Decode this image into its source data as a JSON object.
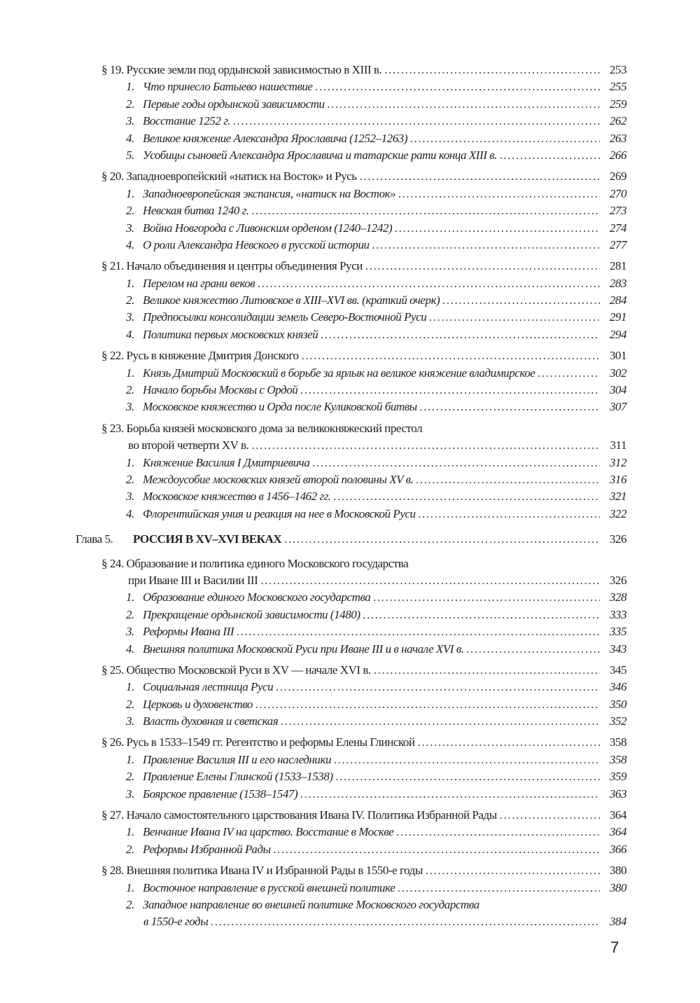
{
  "entries": [
    {
      "type": "section",
      "label": "§ 19. Русские земли под ордынской зависимостью в XIII в.",
      "page": "253"
    },
    {
      "type": "item",
      "num": "1.",
      "label": "Что принесло Батыево нашествие",
      "page": "255"
    },
    {
      "type": "item",
      "num": "2.",
      "label": "Первые годы ордынской зависимости",
      "page": "259"
    },
    {
      "type": "item",
      "num": "3.",
      "label": "Восстание 1252 г.",
      "page": "262"
    },
    {
      "type": "item",
      "num": "4.",
      "label": "Великое княжение Александра Ярославича (1252–1263)",
      "page": "263"
    },
    {
      "type": "item",
      "num": "5.",
      "label": "Усобицы сыновей Александра Ярославича и татарские рати конца XIII в.",
      "page": "266"
    },
    {
      "type": "section",
      "label": "§ 20. Западноевропейский «натиск на Восток» и Русь",
      "page": "269"
    },
    {
      "type": "item",
      "num": "1.",
      "label": "Западноевропейская экспансия, «натиск на Восток»",
      "page": "270"
    },
    {
      "type": "item",
      "num": "2.",
      "label": "Невская битва 1240 г.",
      "page": "273"
    },
    {
      "type": "item",
      "num": "3.",
      "label": "Война Новгорода с Ливонским орденом (1240–1242)",
      "page": "274"
    },
    {
      "type": "item",
      "num": "4.",
      "label": "О роли Александра Невского в русской истории",
      "page": "277"
    },
    {
      "type": "section",
      "label": "§ 21. Начало объединения и центры объединения Руси",
      "page": "281"
    },
    {
      "type": "item",
      "num": "1.",
      "label": "Перелом на грани веков",
      "page": "283"
    },
    {
      "type": "item",
      "num": "2.",
      "label": "Великое княжество Литовское в XIII–XVI вв. (краткий очерк)",
      "page": "284"
    },
    {
      "type": "item",
      "num": "3.",
      "label": "Предпосылки консолидации земель Северо-Восточной Руси",
      "page": "291"
    },
    {
      "type": "item",
      "num": "4.",
      "label": "Политика первых московских князей",
      "page": "294"
    },
    {
      "type": "section",
      "label": "§ 22. Русь в княжение Дмитрия Донского",
      "page": "301"
    },
    {
      "type": "item",
      "num": "1.",
      "label": "Князь Дмитрий Московский в борьбе за ярлык на великое княжение владимирское",
      "page": "302"
    },
    {
      "type": "item",
      "num": "2.",
      "label": "Начало борьбы Москвы с Ордой",
      "page": "304"
    },
    {
      "type": "item",
      "num": "3.",
      "label": "Московское княжество и Орда после Куликовской битвы",
      "page": "307"
    },
    {
      "type": "section",
      "label": "§ 23. Борьба князей московского дома за великокняжеский престол",
      "page": ""
    },
    {
      "type": "cont",
      "label": "во второй четверти XV в.",
      "page": "311"
    },
    {
      "type": "item",
      "num": "1.",
      "label": "Княжение Василия I Дмитриевича",
      "page": "312"
    },
    {
      "type": "item",
      "num": "2.",
      "label": "Междоусобие московских князей второй половины XV в.",
      "page": "316"
    },
    {
      "type": "item",
      "num": "3.",
      "label": "Московское княжество в 1456–1462 гг.",
      "page": "321"
    },
    {
      "type": "item",
      "num": "4.",
      "label": "Флорентийская уния и реакция на нее в Московской Руси",
      "page": "322"
    },
    {
      "type": "chapter",
      "num": "Глава 5.",
      "label": "РОССИЯ В XV–XVI ВЕКАХ",
      "page": "326"
    },
    {
      "type": "section",
      "label": "§ 24. Образование и политика единого Московского государства",
      "page": ""
    },
    {
      "type": "cont",
      "label": "при Иване III и Василии III",
      "page": "326"
    },
    {
      "type": "item",
      "num": "1.",
      "label": "Образование единого Московского государства",
      "page": "328"
    },
    {
      "type": "item",
      "num": "2.",
      "label": "Прекращение ордынской зависимости (1480)",
      "page": "333"
    },
    {
      "type": "item",
      "num": "3.",
      "label": "Реформы Ивана III",
      "page": "335"
    },
    {
      "type": "item",
      "num": "4.",
      "label": "Внешняя политика Московской Руси при Иване III и в начале XVI в.",
      "page": "343"
    },
    {
      "type": "section",
      "label": "§ 25. Общество Московской Руси в XV — начале XVI в.",
      "page": "345"
    },
    {
      "type": "item",
      "num": "1.",
      "label": "Социальная лестница Руси",
      "page": "346"
    },
    {
      "type": "item",
      "num": "2.",
      "label": "Церковь и духовенство",
      "page": "350"
    },
    {
      "type": "item",
      "num": "3.",
      "label": "Власть духовная и светская",
      "page": "352"
    },
    {
      "type": "section",
      "label": "§ 26. Русь в 1533–1549 гг. Регентство и реформы Елены Глинской",
      "page": "358"
    },
    {
      "type": "item",
      "num": "1.",
      "label": "Правление Василия III и его наследники",
      "page": "358"
    },
    {
      "type": "item",
      "num": "2.",
      "label": "Правление Елены Глинской (1533–1538)",
      "page": "359"
    },
    {
      "type": "item",
      "num": "3.",
      "label": "Боярское правление (1538–1547)",
      "page": "363"
    },
    {
      "type": "section",
      "label": "§ 27. Начало самостоятельного царствования Ивана IV. Политика Избранной Рады",
      "page": "364"
    },
    {
      "type": "item",
      "num": "1.",
      "label": "Венчание Ивана IV на царство. Восстание в Москве",
      "page": "364"
    },
    {
      "type": "item",
      "num": "2.",
      "label": "Реформы Избранной Рады",
      "page": "366"
    },
    {
      "type": "section",
      "label": "§ 28. Внешняя политика Ивана IV и Избранной Рады в 1550-е годы",
      "page": "380"
    },
    {
      "type": "item",
      "num": "1.",
      "label": "Восточное направление в русской внешней политике",
      "page": "380"
    },
    {
      "type": "item",
      "num": "2.",
      "label": "Западное направление во внешней политике Московского государства",
      "page": ""
    },
    {
      "type": "cont",
      "label": "в 1550-е годы",
      "page": "384",
      "italic": true
    }
  ],
  "page_number": "7"
}
